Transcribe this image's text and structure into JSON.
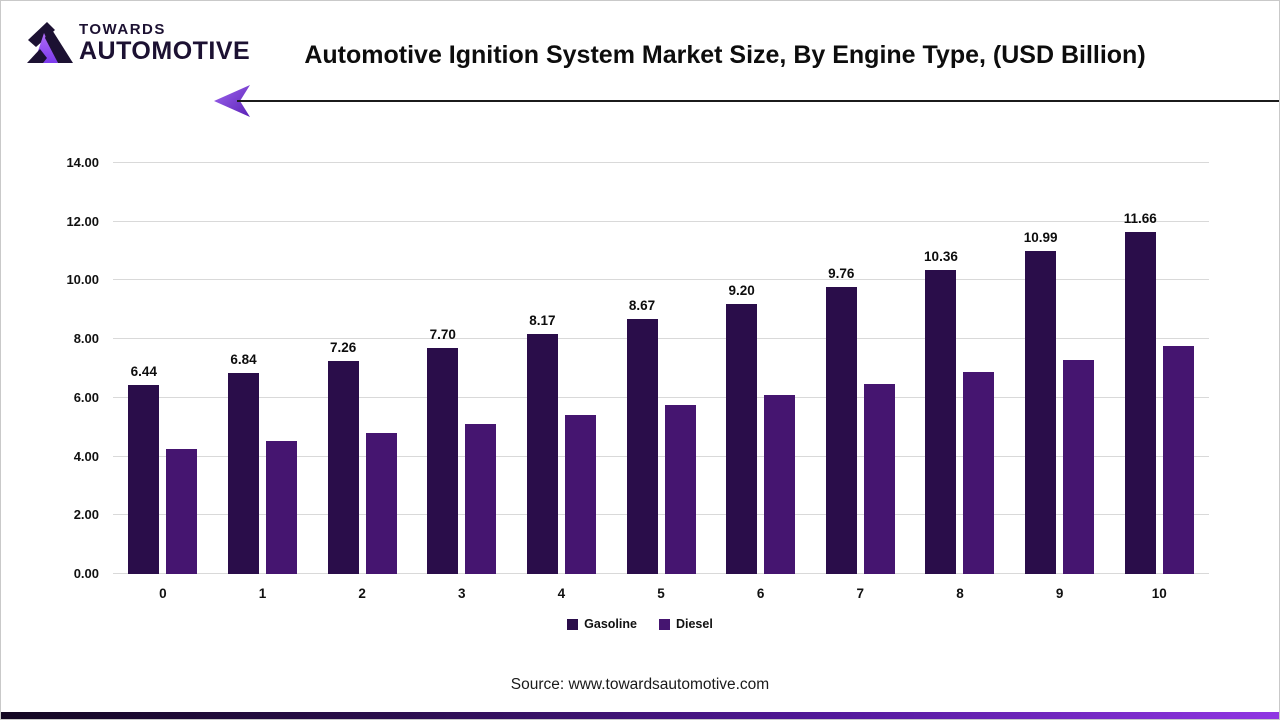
{
  "brand": {
    "logo_top": "TOWARDS",
    "logo_bottom": "AUTOMOTIVE",
    "accent_dark": "#1c1132",
    "accent_purple": "#8b4fe8"
  },
  "header": {
    "title": "Automotive Ignition System Market Size, By Engine Type, (USD Billion)"
  },
  "chart_data": {
    "type": "bar",
    "title": "Automotive Ignition System Market Size, By Engine Type, (USD Billion)",
    "categories": [
      "0",
      "1",
      "2",
      "3",
      "4",
      "5",
      "6",
      "7",
      "8",
      "9",
      "10"
    ],
    "series": [
      {
        "name": "Gasoline",
        "color": "#2a0d4a",
        "values": [
          6.44,
          6.84,
          7.26,
          7.7,
          8.17,
          8.67,
          9.2,
          9.76,
          10.36,
          10.99,
          11.66
        ],
        "labels": [
          "6.44",
          "6.84",
          "7.26",
          "7.70",
          "8.17",
          "8.67",
          "9.20",
          "9.76",
          "10.36",
          "10.99",
          "11.66"
        ]
      },
      {
        "name": "Diesel",
        "color": "#451570",
        "values": [
          4.25,
          4.52,
          4.8,
          5.1,
          5.41,
          5.75,
          6.1,
          6.47,
          6.87,
          7.3,
          7.75
        ]
      }
    ],
    "ylim": [
      0,
      14
    ],
    "yticks": [
      "0.00",
      "2.00",
      "4.00",
      "6.00",
      "8.00",
      "10.00",
      "12.00",
      "14.00"
    ],
    "grid": true,
    "legend_position": "bottom",
    "gridline_color": "#d9d9d9"
  },
  "footer": {
    "source": "Source: www.towardsautomotive.com"
  }
}
